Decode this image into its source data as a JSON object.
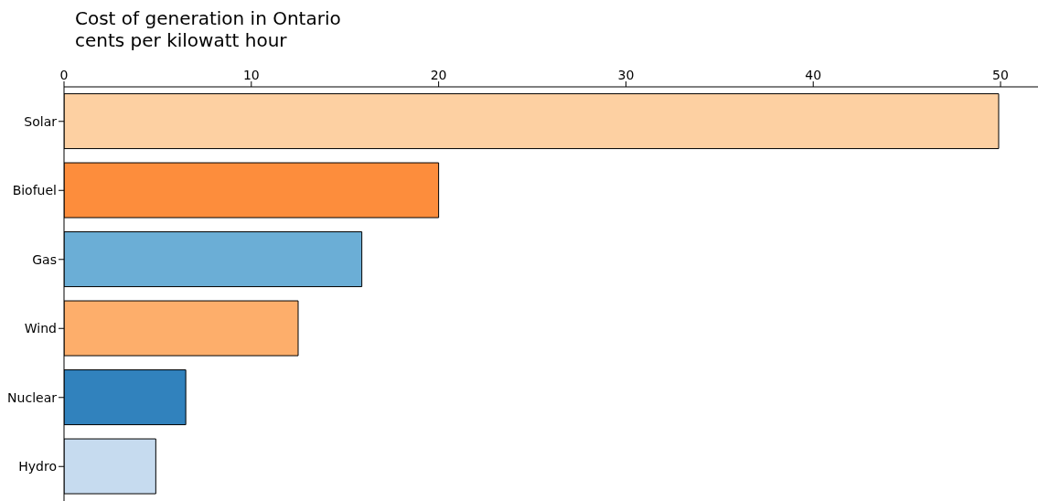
{
  "chart_data": {
    "type": "bar",
    "orientation": "horizontal",
    "title": "Cost of generation in Ontario",
    "subtitle": "cents per kilowatt hour",
    "categories": [
      "Solar",
      "Biofuel",
      "Gas",
      "Wind",
      "Nuclear",
      "Hydro"
    ],
    "values": [
      49.9,
      20.0,
      15.9,
      12.5,
      6.5,
      4.9
    ],
    "colors": [
      "#fdd0a2",
      "#fd8d3c",
      "#6baed6",
      "#fdae6b",
      "#3182bd",
      "#c6dbef"
    ],
    "xlim": [
      0,
      52
    ],
    "xticks": [
      0,
      10,
      20,
      30,
      40,
      50
    ]
  }
}
